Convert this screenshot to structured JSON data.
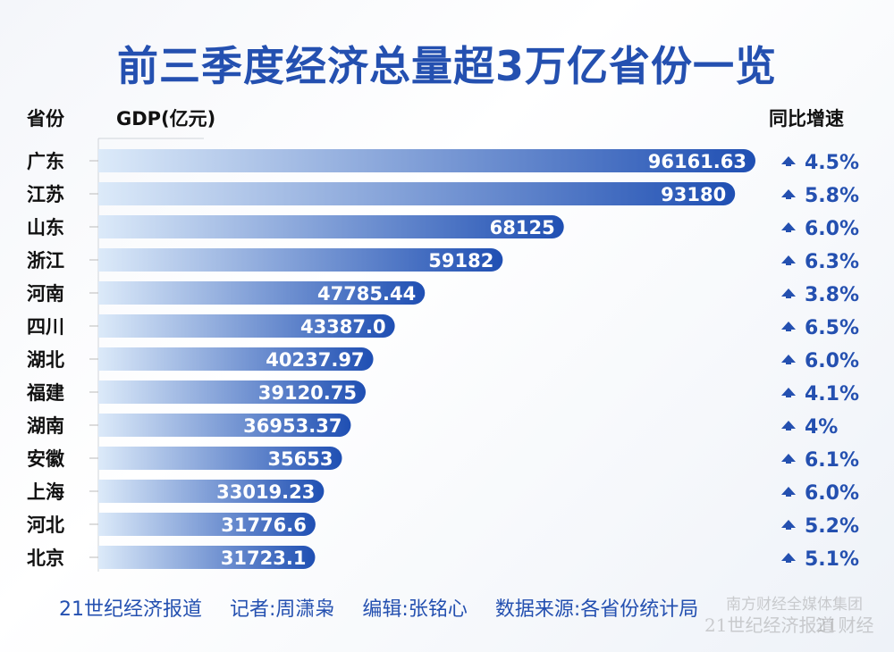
{
  "chart_data": {
    "type": "bar",
    "orientation": "horizontal",
    "title": "前三季度经济总量超3万亿省份一览",
    "category_header": "省份",
    "value_header": "GDP(亿元)",
    "growth_header": "同比增速",
    "categories": [
      "广东",
      "江苏",
      "山东",
      "浙江",
      "河南",
      "四川",
      "湖北",
      "福建",
      "湖南",
      "安徽",
      "上海",
      "河北",
      "北京"
    ],
    "value_labels": [
      "96161.63",
      "93180",
      "68125",
      "59182",
      "47785.44",
      "43387.0",
      "40237.97",
      "39120.75",
      "36953.37",
      "35653",
      "33019.23",
      "31776.6",
      "31723.1"
    ],
    "values": [
      96161.63,
      93180,
      68125,
      59182,
      47785.44,
      43387.0,
      40237.97,
      39120.75,
      36953.37,
      35653,
      33019.23,
      31776.6,
      31723.1
    ],
    "growth": [
      "4.5%",
      "5.8%",
      "6.0%",
      "6.3%",
      "3.8%",
      "6.5%",
      "6.0%",
      "4.1%",
      "4%",
      "6.1%",
      "6.0%",
      "5.2%",
      "5.1%"
    ],
    "growth_icon": "arrow-up-icon",
    "xlim": [
      0,
      96161.63
    ],
    "colors": {
      "bar_start": "#dceaf9",
      "bar_end": "#1f4fb3",
      "accent": "#2450b0"
    }
  },
  "footer": [
    "21世纪经济报道",
    "记者:周潇枭",
    "编辑:张铭心",
    "数据来源:各省份统计局"
  ],
  "watermark": [
    "南方财经全媒体集团",
    "21世纪经济报道",
    "21财经"
  ]
}
